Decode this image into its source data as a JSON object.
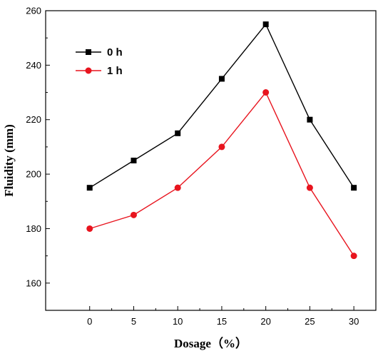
{
  "chart_data": {
    "type": "line",
    "xlabel": "Dosage（%）",
    "ylabel": "Fluidity (mm)",
    "x": [
      0,
      5,
      10,
      15,
      20,
      25,
      30
    ],
    "xlim": [
      -5,
      32.5
    ],
    "ylim": [
      150,
      260
    ],
    "xticks": [
      0,
      5,
      10,
      15,
      20,
      25,
      30
    ],
    "yticks": [
      160,
      180,
      200,
      220,
      240,
      260
    ],
    "grid": false,
    "legend_position": "top-left",
    "series": [
      {
        "name": "0 h",
        "color": "#000000",
        "marker": "square",
        "values": [
          195,
          205,
          215,
          235,
          255,
          220,
          195
        ]
      },
      {
        "name": "1 h",
        "color": "#e8141e",
        "marker": "circle",
        "values": [
          180,
          185,
          195,
          210,
          230,
          195,
          170
        ]
      }
    ]
  }
}
